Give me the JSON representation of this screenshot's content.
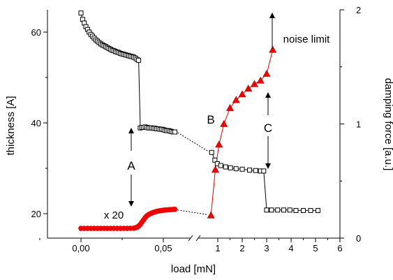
{
  "chart_data": {
    "type": "scatter",
    "xlabel": "load [mN]",
    "ylabel": "thickness [A]",
    "y2label": "damping force [a.u.]",
    "x_left_ticks": [
      {
        "value": 0.0,
        "label": "0,00"
      },
      {
        "value": 0.05,
        "label": "0,05"
      }
    ],
    "x_right_ticks": [
      {
        "value": 1,
        "label": "1"
      },
      {
        "value": 2,
        "label": "2"
      },
      {
        "value": 3,
        "label": "3"
      },
      {
        "value": 4,
        "label": "4"
      },
      {
        "value": 5,
        "label": "5"
      },
      {
        "value": 6,
        "label": "6"
      }
    ],
    "y_ticks": [
      {
        "value": 20,
        "label": "20"
      },
      {
        "value": 40,
        "label": "40"
      },
      {
        "value": 60,
        "label": "60"
      }
    ],
    "y2_ticks": [
      {
        "value": 0,
        "label": "0"
      },
      {
        "value": 1,
        "label": "1"
      },
      {
        "value": 2,
        "label": "2"
      }
    ],
    "annotations": {
      "A": "A",
      "B": "B",
      "C": "C",
      "x20": "x 20",
      "noise": "noise limit"
    },
    "thickness_left": [
      [
        0.0,
        64.2
      ],
      [
        0.001,
        62.8
      ],
      [
        0.002,
        62.0
      ],
      [
        0.003,
        61.2
      ],
      [
        0.004,
        60.6
      ],
      [
        0.005,
        60.0
      ],
      [
        0.006,
        59.5
      ],
      [
        0.007,
        59.1
      ],
      [
        0.008,
        58.7
      ],
      [
        0.009,
        58.3
      ],
      [
        0.01,
        58.0
      ],
      [
        0.011,
        57.7
      ],
      [
        0.012,
        57.4
      ],
      [
        0.013,
        57.2
      ],
      [
        0.014,
        57.0
      ],
      [
        0.015,
        56.8
      ],
      [
        0.016,
        56.6
      ],
      [
        0.017,
        56.4
      ],
      [
        0.018,
        56.2
      ],
      [
        0.019,
        56.0
      ],
      [
        0.02,
        55.9
      ],
      [
        0.021,
        55.7
      ],
      [
        0.022,
        55.6
      ],
      [
        0.023,
        55.5
      ],
      [
        0.024,
        55.3
      ],
      [
        0.025,
        55.2
      ],
      [
        0.026,
        55.1
      ],
      [
        0.027,
        55.0
      ],
      [
        0.028,
        54.9
      ],
      [
        0.029,
        54.8
      ],
      [
        0.03,
        54.7
      ],
      [
        0.031,
        54.6
      ],
      [
        0.032,
        54.5
      ],
      [
        0.033,
        54.3
      ],
      [
        0.034,
        54.0
      ],
      [
        0.035,
        53.8
      ],
      [
        0.036,
        38.9
      ],
      [
        0.037,
        39.0
      ],
      [
        0.038,
        39.0
      ],
      [
        0.039,
        39.1
      ],
      [
        0.04,
        39.0
      ],
      [
        0.041,
        38.9
      ],
      [
        0.042,
        38.9
      ],
      [
        0.043,
        38.9
      ],
      [
        0.044,
        38.8
      ],
      [
        0.045,
        38.8
      ],
      [
        0.046,
        38.7
      ],
      [
        0.047,
        38.7
      ],
      [
        0.048,
        38.6
      ],
      [
        0.049,
        38.6
      ],
      [
        0.05,
        38.5
      ],
      [
        0.051,
        38.4
      ],
      [
        0.052,
        38.3
      ],
      [
        0.053,
        38.3
      ],
      [
        0.054,
        38.2
      ],
      [
        0.055,
        38.1
      ],
      [
        0.056,
        38.0
      ],
      [
        0.057,
        38.0
      ]
    ],
    "thickness_right": [
      [
        0.75,
        33.5
      ],
      [
        0.88,
        31.8
      ],
      [
        0.98,
        31.0
      ],
      [
        1.12,
        30.6
      ],
      [
        1.32,
        30.3
      ],
      [
        1.52,
        30.1
      ],
      [
        1.75,
        29.9
      ],
      [
        2.0,
        29.8
      ],
      [
        2.3,
        29.6
      ],
      [
        2.55,
        29.5
      ],
      [
        2.75,
        29.4
      ],
      [
        2.88,
        29.4
      ],
      [
        3.0,
        20.8
      ],
      [
        3.2,
        20.8
      ],
      [
        3.45,
        20.8
      ],
      [
        3.7,
        20.8
      ],
      [
        3.95,
        20.8
      ],
      [
        4.2,
        20.7
      ],
      [
        4.5,
        20.7
      ],
      [
        4.8,
        20.7
      ],
      [
        5.1,
        20.7
      ]
    ],
    "damping_left": [
      [
        0.0,
        0.085
      ],
      [
        0.002,
        0.085
      ],
      [
        0.004,
        0.085
      ],
      [
        0.006,
        0.085
      ],
      [
        0.008,
        0.085
      ],
      [
        0.01,
        0.085
      ],
      [
        0.012,
        0.085
      ],
      [
        0.014,
        0.085
      ],
      [
        0.016,
        0.085
      ],
      [
        0.018,
        0.085
      ],
      [
        0.02,
        0.085
      ],
      [
        0.022,
        0.085
      ],
      [
        0.024,
        0.085
      ],
      [
        0.026,
        0.085
      ],
      [
        0.028,
        0.085
      ],
      [
        0.03,
        0.086
      ],
      [
        0.032,
        0.087
      ],
      [
        0.033,
        0.09
      ],
      [
        0.034,
        0.095
      ],
      [
        0.035,
        0.105
      ],
      [
        0.036,
        0.12
      ],
      [
        0.037,
        0.14
      ],
      [
        0.038,
        0.16
      ],
      [
        0.039,
        0.18
      ],
      [
        0.04,
        0.195
      ],
      [
        0.041,
        0.205
      ],
      [
        0.042,
        0.213
      ],
      [
        0.043,
        0.22
      ],
      [
        0.044,
        0.225
      ],
      [
        0.045,
        0.23
      ],
      [
        0.046,
        0.234
      ],
      [
        0.047,
        0.237
      ],
      [
        0.048,
        0.24
      ],
      [
        0.049,
        0.242
      ],
      [
        0.05,
        0.244
      ],
      [
        0.051,
        0.246
      ],
      [
        0.052,
        0.247
      ],
      [
        0.053,
        0.248
      ],
      [
        0.054,
        0.249
      ],
      [
        0.055,
        0.25
      ],
      [
        0.056,
        0.251
      ],
      [
        0.057,
        0.252
      ]
    ],
    "damping_right": [
      [
        0.72,
        0.2
      ],
      [
        0.9,
        0.6
      ],
      [
        1.05,
        0.82
      ],
      [
        1.25,
        1.0
      ],
      [
        1.5,
        1.14
      ],
      [
        1.75,
        1.21
      ],
      [
        2.0,
        1.26
      ],
      [
        2.25,
        1.31
      ],
      [
        2.5,
        1.35
      ],
      [
        2.75,
        1.38
      ],
      [
        3.0,
        1.44
      ],
      [
        3.25,
        1.65
      ]
    ]
  }
}
